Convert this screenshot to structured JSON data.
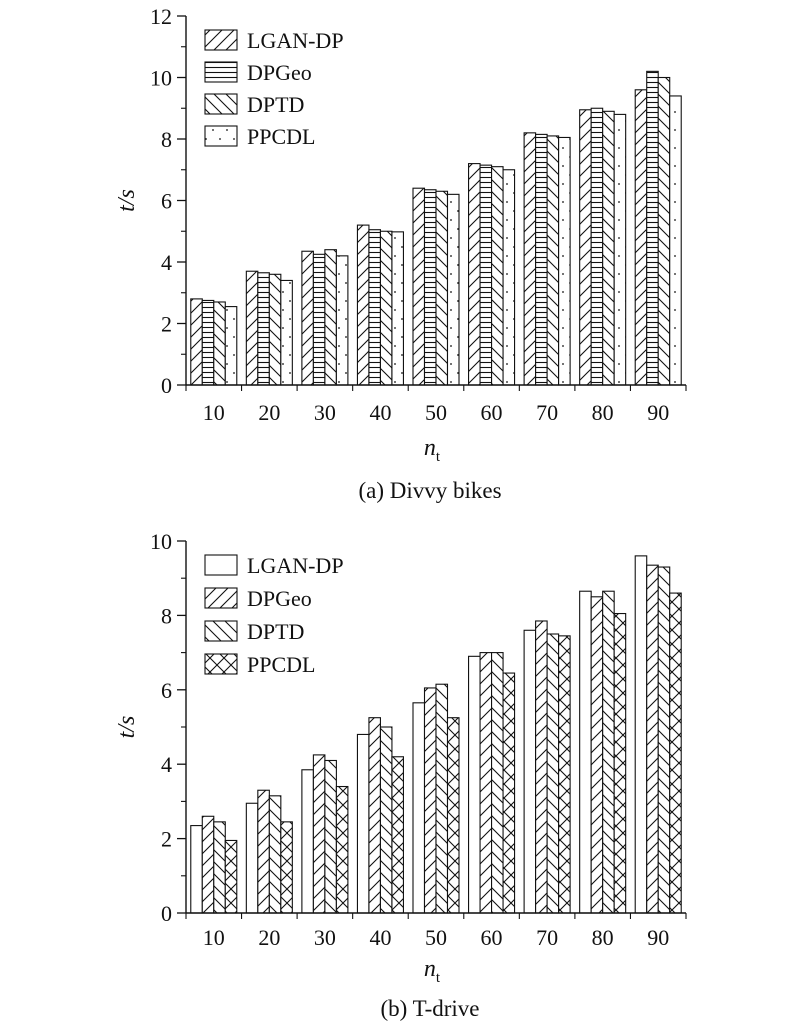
{
  "figure": {
    "colors": {
      "ink": "#111111",
      "background": "#ffffff"
    }
  },
  "chart_data": [
    {
      "type": "bar",
      "caption": "(a) Divvy bikes",
      "xlabel": "n",
      "xlabel_sub": "t",
      "ylabel": "t/s",
      "ylim": [
        0,
        12
      ],
      "yticks": [
        0,
        2,
        4,
        6,
        8,
        10,
        12
      ],
      "categories": [
        "10",
        "20",
        "30",
        "40",
        "50",
        "60",
        "70",
        "80",
        "90"
      ],
      "legend_position": "top-left",
      "series": [
        {
          "name": "LGAN-DP",
          "pattern": "diag-forward",
          "values": [
            2.8,
            3.7,
            4.35,
            5.2,
            6.4,
            7.2,
            8.2,
            8.95,
            9.6
          ]
        },
        {
          "name": "DPGeo",
          "pattern": "horizontal",
          "values": [
            2.75,
            3.65,
            4.25,
            5.05,
            6.35,
            7.15,
            8.15,
            9.0,
            10.2
          ]
        },
        {
          "name": "DPTD",
          "pattern": "diag-back",
          "values": [
            2.7,
            3.6,
            4.4,
            5.0,
            6.3,
            7.1,
            8.1,
            8.9,
            10.0
          ]
        },
        {
          "name": "PPCDL",
          "pattern": "dots",
          "values": [
            2.55,
            3.4,
            4.2,
            4.98,
            6.2,
            7.0,
            8.05,
            8.8,
            9.4
          ]
        }
      ]
    },
    {
      "type": "bar",
      "caption": "(b) T-drive",
      "xlabel": "n",
      "xlabel_sub": "t",
      "ylabel": "t/s",
      "ylim": [
        0,
        10
      ],
      "yticks": [
        0,
        2,
        4,
        6,
        8,
        10
      ],
      "categories": [
        "10",
        "20",
        "30",
        "40",
        "50",
        "60",
        "70",
        "80",
        "90"
      ],
      "legend_position": "top-left",
      "series": [
        {
          "name": "LGAN-DP",
          "pattern": "none",
          "values": [
            2.35,
            2.95,
            3.85,
            4.8,
            5.65,
            6.9,
            7.6,
            8.65,
            9.6
          ]
        },
        {
          "name": "DPGeo",
          "pattern": "diag-forward",
          "values": [
            2.6,
            3.3,
            4.25,
            5.25,
            6.05,
            7.0,
            7.85,
            8.5,
            9.35
          ]
        },
        {
          "name": "DPTD",
          "pattern": "diag-back",
          "values": [
            2.45,
            3.15,
            4.1,
            5.0,
            6.15,
            7.0,
            7.5,
            8.65,
            9.3
          ]
        },
        {
          "name": "PPCDL",
          "pattern": "cross",
          "values": [
            1.95,
            2.45,
            3.4,
            4.2,
            5.25,
            6.45,
            7.45,
            8.05,
            8.6
          ]
        }
      ]
    }
  ]
}
